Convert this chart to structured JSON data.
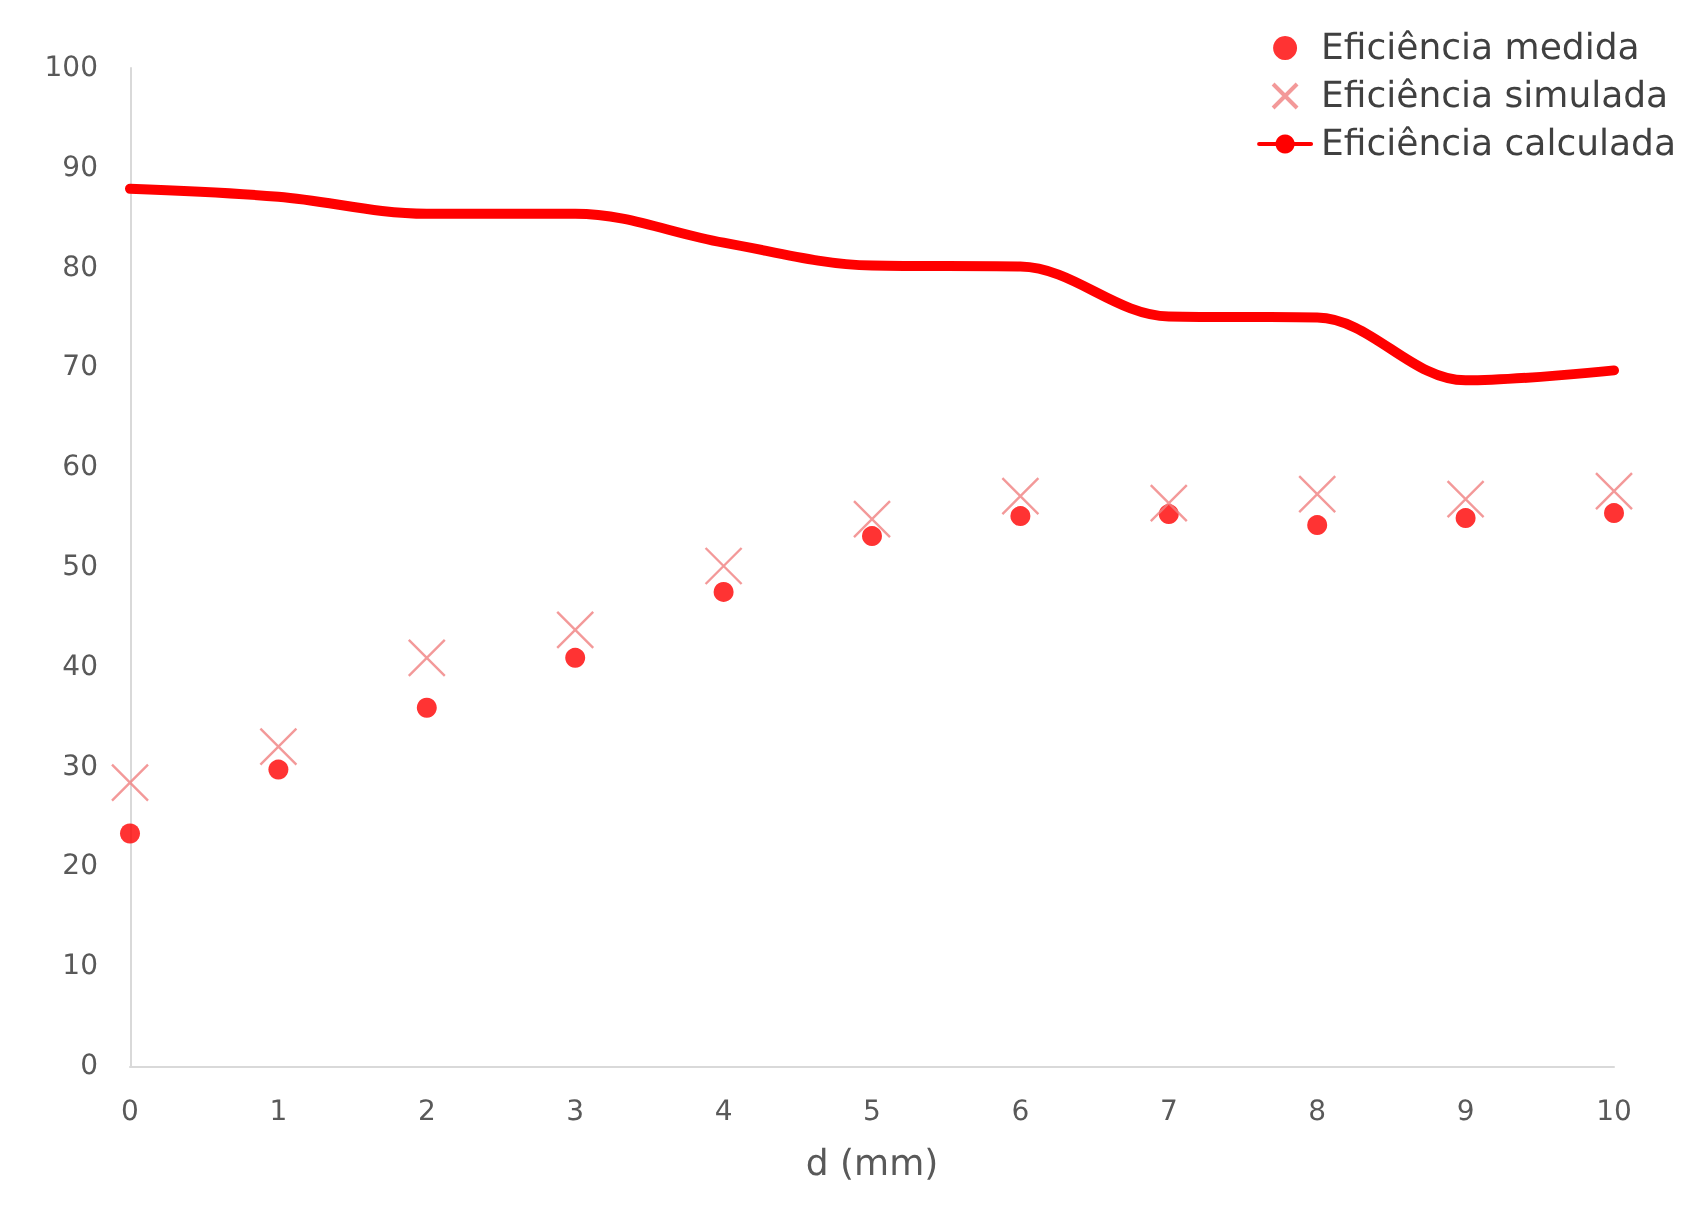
{
  "chart_data": {
    "type": "scatter",
    "xlabel": "d (mm)",
    "x": [
      0,
      1,
      2,
      3,
      4,
      5,
      6,
      7,
      8,
      9,
      10
    ],
    "xlim": [
      0,
      10
    ],
    "xticks": [
      0,
      1,
      2,
      3,
      4,
      5,
      6,
      7,
      8,
      9,
      10
    ],
    "ylim": [
      0,
      100
    ],
    "yticks": [
      0,
      10,
      20,
      30,
      40,
      50,
      60,
      70,
      80,
      90,
      100
    ],
    "grid": false,
    "legend": "top right",
    "series": [
      {
        "name": "Eficiência medida",
        "marker": "circle",
        "color": "#ff0000",
        "values": [
          23.3,
          29.7,
          35.9,
          40.9,
          47.5,
          53.1,
          55.1,
          55.3,
          54.2,
          54.9,
          55.4
        ]
      },
      {
        "name": "Eficiência simulada",
        "marker": "cross",
        "color": "#f08080",
        "values": [
          28.4,
          32.0,
          40.9,
          43.7,
          50.1,
          54.8,
          57.1,
          56.4,
          57.3,
          56.8,
          57.6
        ]
      },
      {
        "name": "Eficiência calculada",
        "type": "line",
        "marker": "none",
        "line_style": "solid",
        "color": "#ff0000",
        "values": [
          87.9,
          87.1,
          85.4,
          85.4,
          82.5,
          80.2,
          80.1,
          75.1,
          75.0,
          68.7,
          69.7
        ]
      }
    ]
  }
}
